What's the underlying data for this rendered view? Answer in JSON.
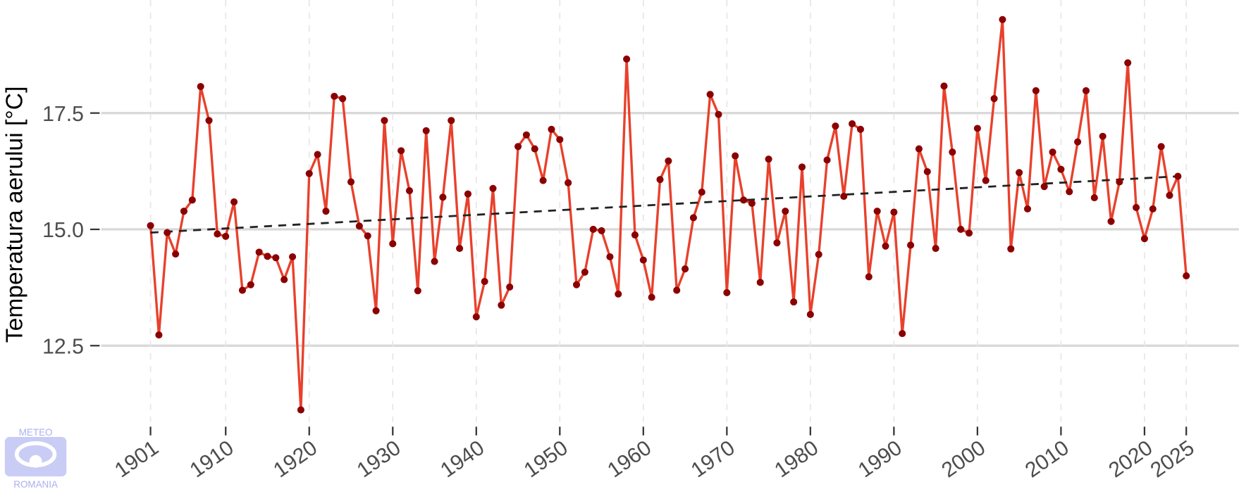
{
  "chart_data": {
    "type": "line",
    "y_label": "Temperatura aerului [°C]",
    "x": [
      1901,
      1902,
      1903,
      1904,
      1905,
      1906,
      1907,
      1908,
      1909,
      1910,
      1911,
      1912,
      1913,
      1914,
      1915,
      1916,
      1917,
      1918,
      1919,
      1920,
      1921,
      1922,
      1923,
      1924,
      1925,
      1926,
      1927,
      1928,
      1929,
      1930,
      1931,
      1932,
      1933,
      1934,
      1935,
      1936,
      1937,
      1938,
      1939,
      1940,
      1941,
      1942,
      1943,
      1944,
      1945,
      1946,
      1947,
      1948,
      1949,
      1950,
      1951,
      1952,
      1953,
      1954,
      1955,
      1956,
      1957,
      1958,
      1959,
      1960,
      1961,
      1962,
      1963,
      1964,
      1965,
      1966,
      1967,
      1968,
      1969,
      1970,
      1971,
      1972,
      1973,
      1974,
      1975,
      1976,
      1977,
      1978,
      1979,
      1980,
      1981,
      1982,
      1983,
      1984,
      1985,
      1986,
      1987,
      1988,
      1989,
      1990,
      1991,
      1992,
      1993,
      1994,
      1995,
      1996,
      1997,
      1998,
      1999,
      2000,
      2001,
      2002,
      2003,
      2004,
      2005,
      2006,
      2007,
      2008,
      2009,
      2010,
      2011,
      2012,
      2013,
      2014,
      2015,
      2016,
      2017,
      2018,
      2019,
      2020,
      2021,
      2022,
      2023,
      2024,
      2025
    ],
    "series": [
      {
        "color": "#e8412c",
        "marker_color": "#8b0000",
        "values": [
          15.08,
          12.73,
          14.93,
          14.47,
          15.39,
          15.63,
          18.07,
          17.34,
          14.9,
          14.85,
          15.59,
          13.69,
          13.81,
          14.51,
          14.42,
          14.39,
          13.92,
          14.41,
          11.12,
          16.2,
          16.61,
          15.39,
          17.86,
          17.81,
          16.02,
          15.07,
          14.86,
          13.25,
          17.34,
          14.69,
          16.69,
          15.83,
          13.68,
          17.12,
          14.31,
          15.69,
          17.34,
          14.59,
          15.76,
          13.12,
          13.88,
          15.88,
          13.37,
          13.76,
          16.78,
          17.03,
          16.73,
          16.05,
          17.15,
          16.93,
          16.0,
          13.81,
          14.08,
          15.0,
          14.97,
          14.41,
          13.61,
          18.66,
          14.88,
          14.34,
          13.54,
          16.07,
          16.47,
          13.69,
          14.15,
          15.25,
          15.8,
          17.9,
          17.47,
          13.64,
          16.58,
          15.63,
          15.56,
          13.86,
          16.51,
          14.71,
          15.39,
          13.44,
          16.34,
          13.17,
          14.46,
          16.49,
          17.22,
          15.71,
          17.27,
          17.15,
          13.98,
          15.39,
          14.64,
          15.37,
          12.76,
          14.66,
          16.73,
          16.24,
          14.59,
          18.08,
          16.66,
          15.0,
          14.92,
          17.17,
          16.05,
          17.81,
          19.51,
          14.58,
          16.22,
          15.44,
          17.98,
          15.92,
          16.66,
          16.29,
          15.81,
          16.88,
          17.98,
          15.68,
          17.0,
          15.17,
          16.02,
          18.58,
          15.47,
          14.8,
          15.44,
          16.78,
          15.73,
          16.14,
          14.0
        ]
      }
    ],
    "trend": {
      "x": [
        1901,
        2025
      ],
      "values": [
        14.93,
        16.15
      ],
      "color": "#222222"
    },
    "xlim": [
      1895.1,
      2031.3
    ],
    "ylim": [
      10.86,
      19.93
    ],
    "xticks": [
      1901,
      1910,
      1920,
      1930,
      1940,
      1950,
      1960,
      1970,
      1980,
      1990,
      2000,
      2010,
      2020,
      2025
    ],
    "yticks": [
      {
        "value": 12.5,
        "label": "12.5"
      },
      {
        "value": 15,
        "label": "15.0"
      },
      {
        "value": 17.5,
        "label": "17.5"
      }
    ],
    "grid": true
  },
  "logo": {
    "top": "METEO",
    "bottom": "ROMANIA"
  }
}
